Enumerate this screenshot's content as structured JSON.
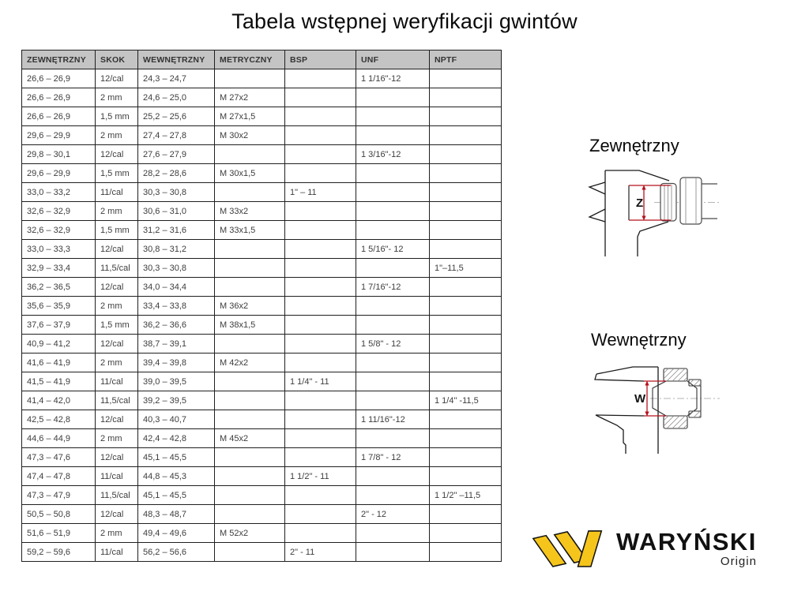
{
  "title": "Tabela wstępnej weryfikacji gwintów",
  "table": {
    "headers": [
      "ZEWNĘTRZNY",
      "SKOK",
      "WEWNĘTRZNY",
      "METRYCZNY",
      "BSP",
      "UNF",
      "NPTF"
    ],
    "rows": [
      [
        "26,6 – 26,9",
        "12/cal",
        "24,3 – 24,7",
        "",
        "",
        "1 1/16\"-12",
        ""
      ],
      [
        "26,6 – 26,9",
        "2 mm",
        "24,6 – 25,0",
        "M 27x2",
        "",
        "",
        ""
      ],
      [
        "26,6 – 26,9",
        "1,5 mm",
        "25,2 – 25,6",
        "M 27x1,5",
        "",
        "",
        ""
      ],
      [
        "29,6 – 29,9",
        "2 mm",
        "27,4 – 27,8",
        "M 30x2",
        "",
        "",
        ""
      ],
      [
        "29,8 – 30,1",
        "12/cal",
        "27,6 – 27,9",
        "",
        "",
        "1 3/16\"-12",
        ""
      ],
      [
        "29,6 – 29,9",
        "1,5 mm",
        "28,2 – 28,6",
        "M 30x1,5",
        "",
        "",
        ""
      ],
      [
        "33,0 – 33,2",
        "11/cal",
        "30,3 – 30,8",
        "",
        "1\" – 11",
        "",
        ""
      ],
      [
        "32,6 – 32,9",
        "2 mm",
        "30,6 – 31,0",
        "M 33x2",
        "",
        "",
        ""
      ],
      [
        "32,6 – 32,9",
        "1,5 mm",
        "31,2 – 31,6",
        "M 33x1,5",
        "",
        "",
        ""
      ],
      [
        "33,0 – 33,3",
        "12/cal",
        "30,8 – 31,2",
        "",
        "",
        "1 5/16\"- 12",
        ""
      ],
      [
        "32,9 – 33,4",
        "11,5/cal",
        "30,3 – 30,8",
        "",
        "",
        "",
        "1\"–11,5"
      ],
      [
        "36,2 – 36,5",
        "12/cal",
        "34,0 – 34,4",
        "",
        "",
        "1 7/16\"-12",
        ""
      ],
      [
        "35,6 – 35,9",
        "2 mm",
        "33,4 – 33,8",
        "M 36x2",
        "",
        "",
        ""
      ],
      [
        "37,6 – 37,9",
        "1,5 mm",
        "36,2 – 36,6",
        "M 38x1,5",
        "",
        "",
        ""
      ],
      [
        "40,9 – 41,2",
        "12/cal",
        "38,7 – 39,1",
        "",
        "",
        "1 5/8\" - 12",
        ""
      ],
      [
        "41,6 – 41,9",
        "2 mm",
        "39,4 – 39,8",
        "M 42x2",
        "",
        "",
        ""
      ],
      [
        "41,5 – 41,9",
        "11/cal",
        "39,0 – 39,5",
        "",
        "1 1/4\" - 11",
        "",
        ""
      ],
      [
        "41,4 – 42,0",
        "11,5/cal",
        "39,2 – 39,5",
        "",
        "",
        "",
        "1 1/4\" -11,5"
      ],
      [
        "42,5 – 42,8",
        "12/cal",
        "40,3 – 40,7",
        "",
        "",
        "1 11/16\"-12",
        ""
      ],
      [
        "44,6 – 44,9",
        "2 mm",
        "42,4 – 42,8",
        "M 45x2",
        "",
        "",
        ""
      ],
      [
        "47,3 – 47,6",
        "12/cal",
        "45,1 – 45,5",
        "",
        "",
        "1 7/8\" - 12",
        ""
      ],
      [
        "47,4 – 47,8",
        "11/cal",
        "44,8 – 45,3",
        "",
        "1 1/2\" - 11",
        "",
        ""
      ],
      [
        "47,3 – 47,9",
        "11,5/cal",
        "45,1 – 45,5",
        "",
        "",
        "",
        "1 1/2\" –11,5"
      ],
      [
        "50,5 – 50,8",
        "12/cal",
        "48,3 – 48,7",
        "",
        "",
        "2\" - 12",
        ""
      ],
      [
        "51,6 – 51,9",
        "2 mm",
        "49,4 – 49,6",
        "M 52x2",
        "",
        "",
        ""
      ],
      [
        "59,2 – 59,6",
        "11/cal",
        "56,2 – 56,6",
        "",
        "2\" - 11",
        "",
        ""
      ]
    ]
  },
  "diagrams": {
    "external": {
      "label": "Zewnętrzny",
      "dim_label": "Z"
    },
    "internal": {
      "label": "Wewnętrzny",
      "dim_label": "W"
    }
  },
  "logo": {
    "brand": "WARYŃSKI",
    "origin": "Origin"
  },
  "colors": {
    "header_bg": "#c4c4c4",
    "table_border": "#1f1f1f",
    "table_text": "#3d3d3d",
    "dimension_red": "#b5121f",
    "logo_yellow": "#f5c51c"
  }
}
